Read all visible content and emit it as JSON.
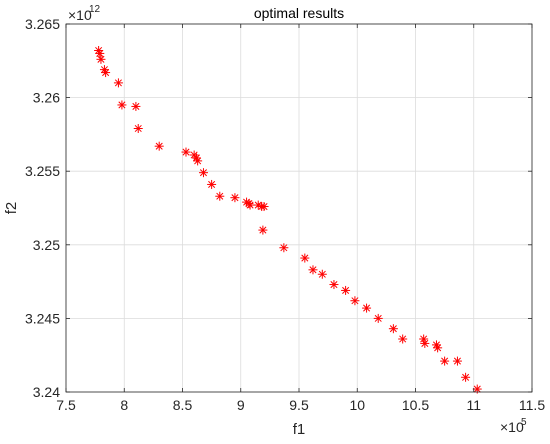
{
  "chart_data": {
    "type": "scatter",
    "title": "optimal results",
    "xlabel": "f1",
    "ylabel": "f2",
    "x_multiplier_base": "×10",
    "x_multiplier_exp": "5",
    "y_multiplier_base": "×10",
    "y_multiplier_exp": "12",
    "xlim": [
      7.5,
      11.5
    ],
    "ylim": [
      3.24,
      3.265
    ],
    "x_ticks": [
      7.5,
      8,
      8.5,
      9,
      9.5,
      10,
      10.5,
      11,
      11.5
    ],
    "x_tick_labels": [
      "7.5",
      "8",
      "8.5",
      "9",
      "9.5",
      "10",
      "10.5",
      "11",
      "11.5"
    ],
    "y_ticks": [
      3.24,
      3.245,
      3.25,
      3.255,
      3.26,
      3.265
    ],
    "y_tick_labels": [
      "3.24",
      "3.245",
      "3.25",
      "3.255",
      "3.26",
      "3.265"
    ],
    "grid": true,
    "marker": "asterisk",
    "marker_color": "#ff0000",
    "series": [
      {
        "x": [
          7.78,
          7.79,
          7.8,
          7.83,
          7.84,
          7.95,
          7.98,
          8.1,
          8.12,
          8.3,
          8.53,
          8.6,
          8.62,
          8.63,
          8.68,
          8.75,
          8.82,
          8.95,
          9.05,
          9.07,
          9.08,
          9.15,
          9.18,
          9.19,
          9.2,
          9.37,
          9.55,
          9.62,
          9.7,
          9.8,
          9.9,
          9.98,
          10.08,
          10.18,
          10.31,
          10.39,
          10.57,
          10.58,
          10.68,
          10.69,
          10.75,
          10.86,
          10.93,
          11.03
        ],
        "y": [
          3.2632,
          3.263,
          3.2626,
          3.2619,
          3.2617,
          3.261,
          3.2595,
          3.2594,
          3.2579,
          3.2567,
          3.2563,
          3.2561,
          3.2559,
          3.2557,
          3.2549,
          3.2541,
          3.2533,
          3.2532,
          3.2529,
          3.2528,
          3.2527,
          3.2527,
          3.2526,
          3.251,
          3.2526,
          3.2498,
          3.2491,
          3.2483,
          3.248,
          3.2473,
          3.2469,
          3.2462,
          3.2457,
          3.245,
          3.2443,
          3.2436,
          3.2436,
          3.2433,
          3.2432,
          3.243,
          3.2421,
          3.2421,
          3.241,
          3.2402
        ]
      }
    ]
  }
}
